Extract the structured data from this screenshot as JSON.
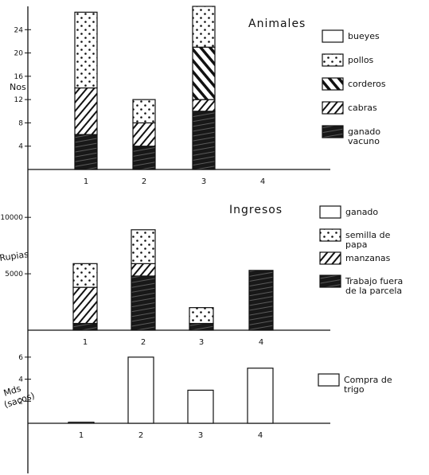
{
  "chart_data": [
    {
      "type": "bar",
      "stacked": true,
      "title": "Animales",
      "ylabel": "Nos",
      "xlabel": "",
      "ylim": [
        0,
        28
      ],
      "yticks": [
        "4",
        "8",
        "12",
        "16",
        "20",
        "24"
      ],
      "categories": [
        "1",
        "2",
        "3",
        "4"
      ],
      "legend_position": "right",
      "series": [
        {
          "name": "ganado vacuno",
          "pattern": "solid-dark",
          "values": [
            6,
            4,
            10,
            0
          ]
        },
        {
          "name": "cabras",
          "pattern": "back-hatch",
          "values": [
            8,
            4,
            2,
            0
          ]
        },
        {
          "name": "corderos",
          "pattern": "diag-hatch",
          "values": [
            0,
            0,
            9,
            0
          ]
        },
        {
          "name": "pollos",
          "pattern": "dots",
          "values": [
            13,
            4,
            7,
            0
          ]
        },
        {
          "name": "bueyes",
          "pattern": "blank",
          "values": [
            0,
            0,
            0,
            0
          ]
        }
      ]
    },
    {
      "type": "bar",
      "stacked": true,
      "title": "Ingresos",
      "ylabel": "Rupias",
      "xlabel": "",
      "ylim": [
        0,
        11000
      ],
      "yticks": [
        "5000",
        "10000"
      ],
      "categories": [
        "1",
        "2",
        "3",
        "4"
      ],
      "legend_position": "right",
      "series": [
        {
          "name": "Trabajo fuera de la parcela",
          "pattern": "solid-dark",
          "values": [
            600,
            4800,
            600,
            5300
          ]
        },
        {
          "name": "manzanas",
          "pattern": "back-hatch",
          "values": [
            3200,
            1100,
            0,
            0
          ]
        },
        {
          "name": "semilla de papa",
          "pattern": "dots",
          "values": [
            2100,
            3000,
            1400,
            0
          ]
        },
        {
          "name": "ganado",
          "pattern": "blank",
          "values": [
            0,
            0,
            0,
            0
          ]
        }
      ]
    },
    {
      "type": "bar",
      "title": "",
      "ylabel": "Mds (sacos)",
      "xlabel": "",
      "ylim": [
        0,
        7
      ],
      "yticks": [
        "2",
        "4",
        "6"
      ],
      "categories": [
        "1",
        "2",
        "3",
        "4"
      ],
      "legend_position": "right",
      "series": [
        {
          "name": "Compra de trigo",
          "pattern": "blank",
          "values": [
            0.1,
            6,
            3,
            5
          ]
        }
      ]
    }
  ]
}
